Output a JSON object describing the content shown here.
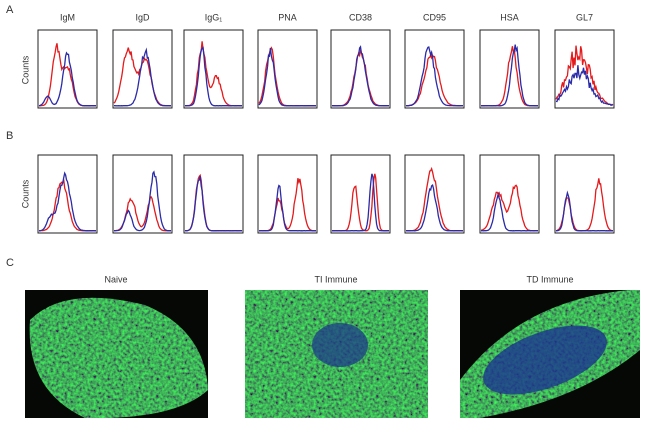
{
  "panels": {
    "a": {
      "label": "A",
      "markers": [
        "IgM",
        "IgD",
        "IgG₁",
        "PNA",
        "CD38",
        "CD95",
        "HSA",
        "GL7"
      ],
      "ylabel": "Counts"
    },
    "b": {
      "label": "B",
      "ylabel": "Counts"
    },
    "c": {
      "label": "C",
      "images": [
        "Naive",
        "TI Immune",
        "TD Immune"
      ]
    }
  }
}
